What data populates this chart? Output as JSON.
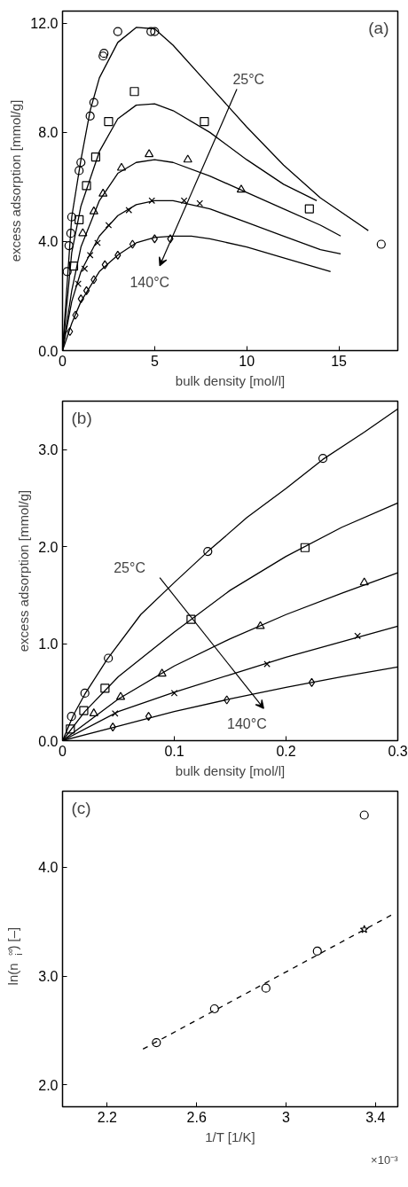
{
  "chart_data": [
    {
      "type": "scatter",
      "title": "(a)",
      "xlabel": "bulk density [mol/l]",
      "ylabel": "excess adsorption [mmol/g]",
      "xlim": [
        0,
        18.2
      ],
      "ylim": [
        0,
        12.45
      ],
      "xticks": [
        0,
        5,
        10,
        15
      ],
      "yticks": [
        {
          "value": 0,
          "label": "0.0"
        },
        {
          "value": 4,
          "label": "4.0"
        },
        {
          "value": 8,
          "label": "8.0"
        },
        {
          "value": 12,
          "label": "12.0"
        }
      ],
      "grid": false,
      "annotations": [
        "25°C",
        "140°C"
      ],
      "series": [
        {
          "marker": "circle",
          "color": "#000000",
          "x": [
            0.25,
            0.35,
            0.45,
            0.5,
            0.9,
            1.0,
            1.5,
            1.7,
            2.2,
            2.25,
            3.0,
            4.8,
            5.0,
            17.3
          ],
          "values": [
            2.9,
            3.85,
            4.3,
            4.9,
            6.6,
            6.9,
            8.6,
            9.1,
            10.8,
            10.9,
            11.7,
            11.7,
            11.7,
            3.9
          ]
        },
        {
          "type": "line",
          "marker": "none",
          "line_style": "solid",
          "color": "#000000",
          "x": [
            0,
            0.5,
            1,
            1.5,
            2,
            3,
            4,
            5,
            6,
            8,
            10,
            12,
            14,
            16.6
          ],
          "values": [
            0,
            4.9,
            7.0,
            8.8,
            10.0,
            11.3,
            11.85,
            11.8,
            11.2,
            9.7,
            8.2,
            6.8,
            5.6,
            4.4
          ]
        },
        {
          "marker": "square",
          "color": "#000000",
          "x": [
            0.6,
            0.9,
            1.3,
            1.8,
            2.5,
            3.9,
            7.7,
            13.4
          ],
          "values": [
            3.1,
            4.8,
            6.05,
            7.1,
            8.4,
            9.5,
            8.4,
            5.2
          ]
        },
        {
          "type": "line",
          "marker": "none",
          "line_style": "solid",
          "color": "#000000",
          "x": [
            0,
            0.5,
            1,
            2,
            3,
            4,
            5,
            6,
            8,
            10,
            12,
            13.8
          ],
          "values": [
            0,
            3.6,
            5.3,
            7.3,
            8.5,
            9.0,
            9.05,
            8.8,
            8.0,
            7.0,
            6.1,
            5.5
          ]
        },
        {
          "marker": "triangle",
          "color": "#000000",
          "x": [
            1.1,
            1.7,
            2.2,
            3.2,
            4.7,
            6.8,
            9.7
          ],
          "values": [
            4.3,
            5.1,
            5.75,
            6.7,
            7.2,
            7.0,
            5.9
          ]
        },
        {
          "type": "line",
          "marker": "none",
          "line_style": "solid",
          "color": "#000000",
          "x": [
            0,
            0.5,
            1,
            2,
            3,
            4,
            5,
            6,
            8,
            10,
            12,
            14,
            15.1
          ],
          "values": [
            0,
            2.2,
            3.8,
            5.5,
            6.5,
            6.9,
            7.0,
            6.9,
            6.4,
            5.8,
            5.2,
            4.6,
            4.2
          ]
        },
        {
          "marker": "cross",
          "color": "#000000",
          "x": [
            0.85,
            1.2,
            1.5,
            1.9,
            2.5,
            3.6,
            4.85,
            6.6,
            7.45
          ],
          "values": [
            2.45,
            3.0,
            3.5,
            3.95,
            4.6,
            5.15,
            5.5,
            5.5,
            5.4
          ]
        },
        {
          "type": "line",
          "marker": "none",
          "line_style": "solid",
          "color": "#000000",
          "x": [
            0,
            0.5,
            1,
            2,
            3,
            4,
            5,
            6,
            8,
            10,
            12,
            14,
            15.1
          ],
          "values": [
            0,
            1.8,
            2.9,
            4.2,
            4.95,
            5.35,
            5.5,
            5.5,
            5.2,
            4.7,
            4.2,
            3.7,
            3.55
          ]
        },
        {
          "marker": "diamond",
          "color": "#000000",
          "x": [
            0.4,
            0.7,
            1.0,
            1.3,
            1.7,
            2.3,
            3.0,
            3.8,
            5.0,
            5.85
          ],
          "values": [
            0.7,
            1.3,
            1.9,
            2.2,
            2.6,
            3.15,
            3.5,
            3.9,
            4.1,
            4.1
          ]
        },
        {
          "type": "line",
          "marker": "none",
          "line_style": "solid",
          "color": "#000000",
          "x": [
            0,
            0.5,
            1,
            2,
            3,
            4,
            5,
            6,
            7,
            8,
            10,
            12,
            14.55
          ],
          "values": [
            0,
            1.0,
            1.8,
            2.9,
            3.5,
            3.95,
            4.15,
            4.2,
            4.2,
            4.1,
            3.8,
            3.4,
            2.9
          ]
        }
      ]
    },
    {
      "type": "scatter",
      "title": "(b)",
      "xlabel": "bulk density [mol/l]",
      "ylabel": "excess adsorption [mmol/g]",
      "xlim": [
        0,
        0.3
      ],
      "ylim": [
        0,
        3.5
      ],
      "xticks": [
        0,
        0.1,
        0.2,
        0.3
      ],
      "yticks": [
        {
          "value": 0,
          "label": "0.0"
        },
        {
          "value": 1,
          "label": "1.0"
        },
        {
          "value": 2,
          "label": "2.0"
        },
        {
          "value": 3,
          "label": "3.0"
        }
      ],
      "grid": false,
      "annotations": [
        "25°C",
        "140°C"
      ],
      "series": [
        {
          "marker": "circle",
          "color": "#000000",
          "x": [
            0.008,
            0.02,
            0.041,
            0.13,
            0.233
          ],
          "values": [
            0.25,
            0.49,
            0.85,
            1.95,
            2.91
          ]
        },
        {
          "type": "line",
          "marker": "none",
          "line_style": "solid",
          "color": "#000000",
          "x": [
            0,
            0.01,
            0.02,
            0.04,
            0.07,
            0.1,
            0.13,
            0.165,
            0.2,
            0.233,
            0.27,
            0.3
          ],
          "values": [
            0,
            0.27,
            0.48,
            0.84,
            1.3,
            1.63,
            1.95,
            2.3,
            2.6,
            2.9,
            3.18,
            3.42
          ]
        },
        {
          "marker": "square",
          "color": "#000000",
          "x": [
            0.007,
            0.019,
            0.038,
            0.115,
            0.217
          ],
          "values": [
            0.12,
            0.31,
            0.54,
            1.25,
            1.99
          ]
        },
        {
          "type": "line",
          "marker": "none",
          "line_style": "solid",
          "color": "#000000",
          "x": [
            0,
            0.02,
            0.05,
            0.1,
            0.15,
            0.2,
            0.25,
            0.3
          ],
          "values": [
            0,
            0.3,
            0.66,
            1.12,
            1.55,
            1.9,
            2.2,
            2.45
          ]
        },
        {
          "marker": "triangle",
          "color": "#000000",
          "x": [
            0.028,
            0.052,
            0.089,
            0.177,
            0.27
          ],
          "values": [
            0.28,
            0.45,
            0.69,
            1.18,
            1.63
          ]
        },
        {
          "type": "line",
          "marker": "none",
          "line_style": "solid",
          "color": "#000000",
          "x": [
            0,
            0.05,
            0.1,
            0.15,
            0.2,
            0.25,
            0.3
          ],
          "values": [
            0,
            0.43,
            0.77,
            1.05,
            1.3,
            1.52,
            1.73
          ]
        },
        {
          "marker": "cross",
          "color": "#000000",
          "x": [
            0.047,
            0.1,
            0.183,
            0.264
          ],
          "values": [
            0.28,
            0.49,
            0.79,
            1.08
          ]
        },
        {
          "type": "line",
          "marker": "none",
          "line_style": "solid",
          "color": "#000000",
          "x": [
            0,
            0.05,
            0.1,
            0.15,
            0.2,
            0.25,
            0.3
          ],
          "values": [
            0,
            0.3,
            0.5,
            0.68,
            0.86,
            1.02,
            1.18
          ]
        },
        {
          "marker": "diamond",
          "color": "#000000",
          "x": [
            0.045,
            0.077,
            0.147,
            0.223
          ],
          "values": [
            0.14,
            0.25,
            0.42,
            0.6
          ]
        },
        {
          "type": "line",
          "marker": "none",
          "line_style": "solid",
          "color": "#000000",
          "x": [
            0,
            0.05,
            0.1,
            0.15,
            0.2,
            0.25,
            0.3
          ],
          "values": [
            0,
            0.15,
            0.3,
            0.43,
            0.55,
            0.66,
            0.76
          ]
        }
      ]
    },
    {
      "type": "scatter",
      "title": "(c)",
      "xlabel": "1/T [1/K]",
      "ylabel": "ln(n$_{i}$$^{∞}$) [–]",
      "xlim": [
        2.0,
        3.5
      ],
      "ylim": [
        1.8,
        4.7
      ],
      "xticks": [
        2.2,
        2.6,
        3,
        3.4
      ],
      "yticks": [
        {
          "value": 2,
          "label": "2.0"
        },
        {
          "value": 3,
          "label": "3.0"
        },
        {
          "value": 4,
          "label": "4.0"
        }
      ],
      "grid": false,
      "annotations": [
        "×10⁻³"
      ],
      "series": [
        {
          "type": "line",
          "marker": "none",
          "line_style": "dashed",
          "color": "#000000",
          "x": [
            2.36,
            3.47
          ],
          "values": [
            2.33,
            3.56
          ]
        },
        {
          "marker": "circle",
          "color": "#000000",
          "x": [
            2.42,
            2.68,
            2.91,
            3.14
          ],
          "values": [
            2.39,
            2.7,
            2.89,
            3.23
          ]
        },
        {
          "marker": "star",
          "color": "#000000",
          "x": [
            3.35
          ],
          "values": [
            3.43
          ]
        },
        {
          "marker": "circle",
          "color": "#000000",
          "x": [
            3.35
          ],
          "values": [
            4.48
          ]
        }
      ]
    }
  ]
}
